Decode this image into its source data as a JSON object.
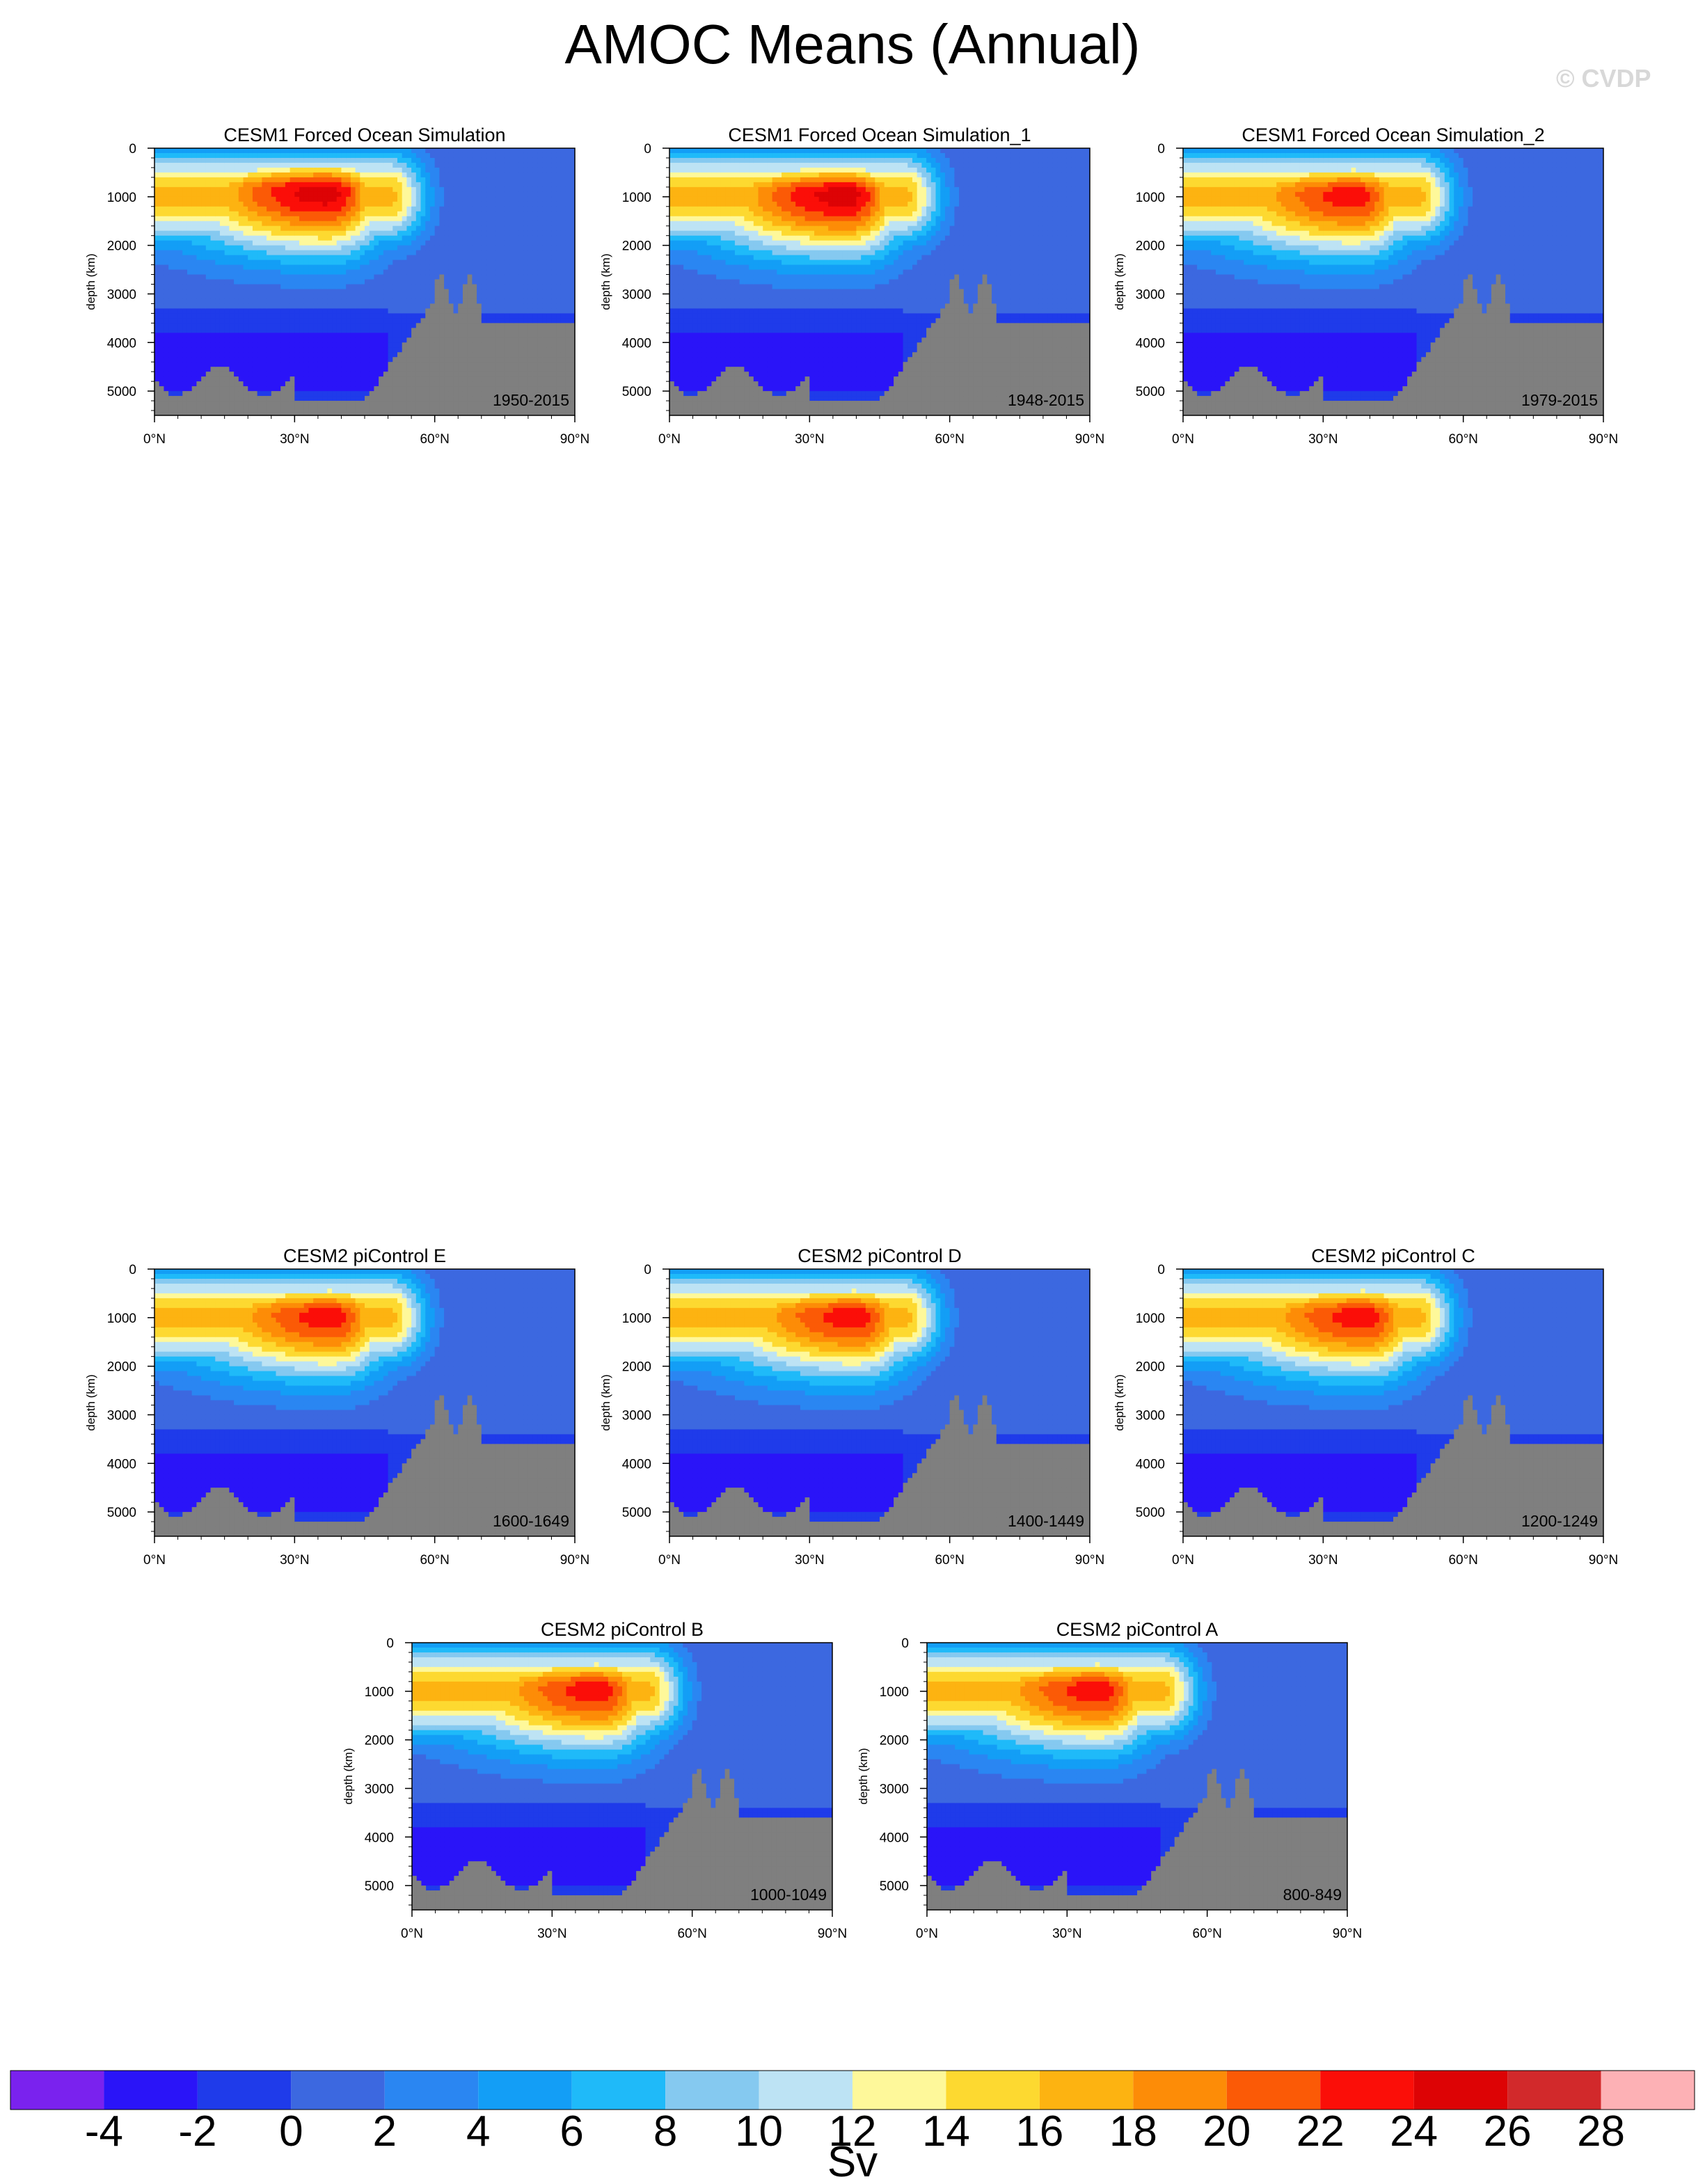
{
  "title": "AMOC Means (Annual)",
  "watermark": "© CVDP",
  "colors": {
    "land": "#7f7f7f",
    "levels": [
      "#7a22ee",
      "#2a14f8",
      "#1f3bea",
      "#3c68e0",
      "#2a86f2",
      "#139ef6",
      "#1fbaf9",
      "#85c9f0",
      "#bde3f4",
      "#fef89a",
      "#fdd930",
      "#fdb311",
      "#fd8c07",
      "#fb5a06",
      "#fb0e08",
      "#dd0305",
      "#d2292b",
      "#fdb1b5"
    ]
  },
  "chart_data": {
    "type": "heatmap",
    "variable": "AMOC mean streamfunction",
    "units": "Sv",
    "y_axis": {
      "label": "depth (km)",
      "ticks": [
        0,
        1000,
        2000,
        3000,
        4000,
        5000
      ],
      "range": [
        0,
        5500
      ],
      "inverted": true
    },
    "x_axis": {
      "ticks": [
        "0°N",
        "30°N",
        "60°N",
        "90°N"
      ],
      "range": [
        0,
        90
      ]
    },
    "colorbar": {
      "unit": "Sv",
      "tick_labels": [
        "-4",
        "-2",
        "0",
        "2",
        "4",
        "6",
        "8",
        "10",
        "12",
        "14",
        "16",
        "18",
        "20",
        "22",
        "24",
        "26",
        "28"
      ],
      "bin_edges": [
        -4,
        -2,
        0,
        2,
        4,
        6,
        8,
        10,
        12,
        14,
        16,
        18,
        20,
        22,
        24,
        26,
        28
      ]
    },
    "panels": [
      {
        "title": "CESM1 Forced Ocean Simulation",
        "years": "1950-2015",
        "max_sv": 25,
        "max_lat": 37,
        "max_depth": 900
      },
      {
        "title": "CESM1 Forced Ocean Simulation_1",
        "years": "1948-2015",
        "max_sv": 25,
        "max_lat": 38,
        "max_depth": 950
      },
      {
        "title": "CESM1 Forced Ocean Simulation_2",
        "years": "1979-2015",
        "max_sv": 23,
        "max_lat": 37,
        "max_depth": 950
      },
      {
        "title": "CESM2 piControl E",
        "years": "1600-1649",
        "max_sv": 23,
        "max_lat": 38,
        "max_depth": 950
      },
      {
        "title": "CESM2 piControl D",
        "years": "1400-1449",
        "max_sv": 23,
        "max_lat": 40,
        "max_depth": 950
      },
      {
        "title": "CESM2 piControl C",
        "years": "1200-1249",
        "max_sv": 23,
        "max_lat": 39,
        "max_depth": 950
      },
      {
        "title": "CESM2 piControl B",
        "years": "1000-1049",
        "max_sv": 23,
        "max_lat": 40,
        "max_depth": 950
      },
      {
        "title": "CESM2 piControl A",
        "years": "800-849",
        "max_sv": 23,
        "max_lat": 37,
        "max_depth": 950
      }
    ]
  }
}
